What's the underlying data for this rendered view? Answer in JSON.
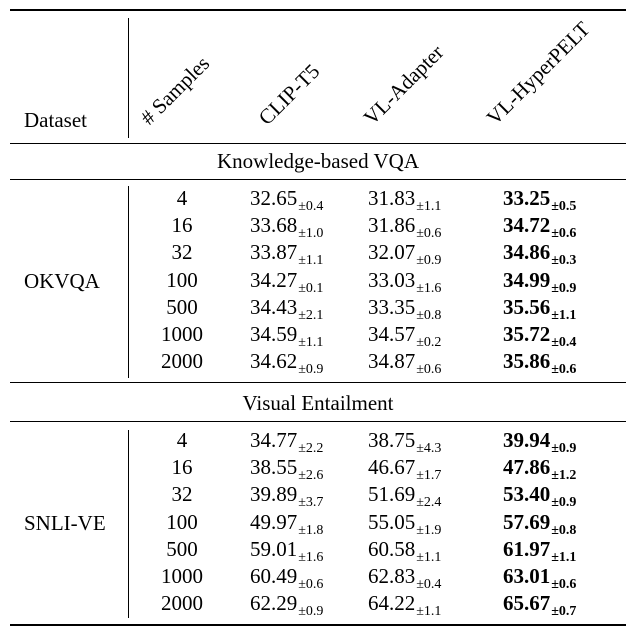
{
  "header": {
    "dataset": "Dataset",
    "samples": "# Samples",
    "clip_t5": "CLIP-T5",
    "vl_adapter": "VL-Adapter",
    "vl_hyperpelt": "VL-HyperPELT"
  },
  "sections": [
    {
      "title": "Knowledge-based VQA",
      "dataset": "OKVQA",
      "rows": [
        {
          "samples": "4",
          "clip": "32.65",
          "clip_std": "±0.4",
          "vla": "31.83",
          "vla_std": "±1.1",
          "hyper": "33.25",
          "hyper_std": "±0.5"
        },
        {
          "samples": "16",
          "clip": "33.68",
          "clip_std": "±1.0",
          "vla": "31.86",
          "vla_std": "±0.6",
          "hyper": "34.72",
          "hyper_std": "±0.6"
        },
        {
          "samples": "32",
          "clip": "33.87",
          "clip_std": "±1.1",
          "vla": "32.07",
          "vla_std": "±0.9",
          "hyper": "34.86",
          "hyper_std": "±0.3"
        },
        {
          "samples": "100",
          "clip": "34.27",
          "clip_std": "±0.1",
          "vla": "33.03",
          "vla_std": "±1.6",
          "hyper": "34.99",
          "hyper_std": "±0.9"
        },
        {
          "samples": "500",
          "clip": "34.43",
          "clip_std": "±2.1",
          "vla": "33.35",
          "vla_std": "±0.8",
          "hyper": "35.56",
          "hyper_std": "±1.1"
        },
        {
          "samples": "1000",
          "clip": "34.59",
          "clip_std": "±1.1",
          "vla": "34.57",
          "vla_std": "±0.2",
          "hyper": "35.72",
          "hyper_std": "±0.4"
        },
        {
          "samples": "2000",
          "clip": "34.62",
          "clip_std": "±0.9",
          "vla": "34.87",
          "vla_std": "±0.6",
          "hyper": "35.86",
          "hyper_std": "±0.6"
        }
      ]
    },
    {
      "title": "Visual Entailment",
      "dataset": "SNLI-VE",
      "rows": [
        {
          "samples": "4",
          "clip": "34.77",
          "clip_std": "±2.2",
          "vla": "38.75",
          "vla_std": "±4.3",
          "hyper": "39.94",
          "hyper_std": "±0.9"
        },
        {
          "samples": "16",
          "clip": "38.55",
          "clip_std": "±2.6",
          "vla": "46.67",
          "vla_std": "±1.7",
          "hyper": "47.86",
          "hyper_std": "±1.2"
        },
        {
          "samples": "32",
          "clip": "39.89",
          "clip_std": "±3.7",
          "vla": "51.69",
          "vla_std": "±2.4",
          "hyper": "53.40",
          "hyper_std": "±0.9"
        },
        {
          "samples": "100",
          "clip": "49.97",
          "clip_std": "±1.8",
          "vla": "55.05",
          "vla_std": "±1.9",
          "hyper": "57.69",
          "hyper_std": "±0.8"
        },
        {
          "samples": "500",
          "clip": "59.01",
          "clip_std": "±1.6",
          "vla": "60.58",
          "vla_std": "±1.1",
          "hyper": "61.97",
          "hyper_std": "±1.1"
        },
        {
          "samples": "1000",
          "clip": "60.49",
          "clip_std": "±0.6",
          "vla": "62.83",
          "vla_std": "±0.4",
          "hyper": "63.01",
          "hyper_std": "±0.6"
        },
        {
          "samples": "2000",
          "clip": "62.29",
          "clip_std": "±0.9",
          "vla": "64.22",
          "vla_std": "±1.1",
          "hyper": "65.67",
          "hyper_std": "±0.7"
        }
      ]
    }
  ]
}
